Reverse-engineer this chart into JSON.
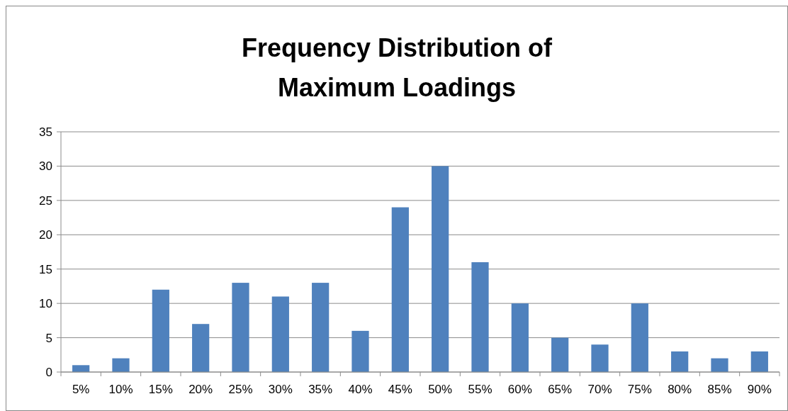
{
  "chart_data": {
    "type": "bar",
    "title": "Frequency Distribution of Maximum Loadings",
    "categories": [
      "5%",
      "10%",
      "15%",
      "20%",
      "25%",
      "30%",
      "35%",
      "40%",
      "45%",
      "50%",
      "55%",
      "60%",
      "65%",
      "70%",
      "75%",
      "80%",
      "85%",
      "90%"
    ],
    "values": [
      1,
      2,
      12,
      7,
      13,
      11,
      13,
      6,
      24,
      30,
      16,
      10,
      5,
      4,
      10,
      3,
      2,
      3
    ],
    "color": "#4f81bd",
    "ylim": [
      0,
      35
    ],
    "yticks": [
      0,
      5,
      10,
      15,
      20,
      25,
      30,
      35
    ],
    "grid": "y"
  }
}
